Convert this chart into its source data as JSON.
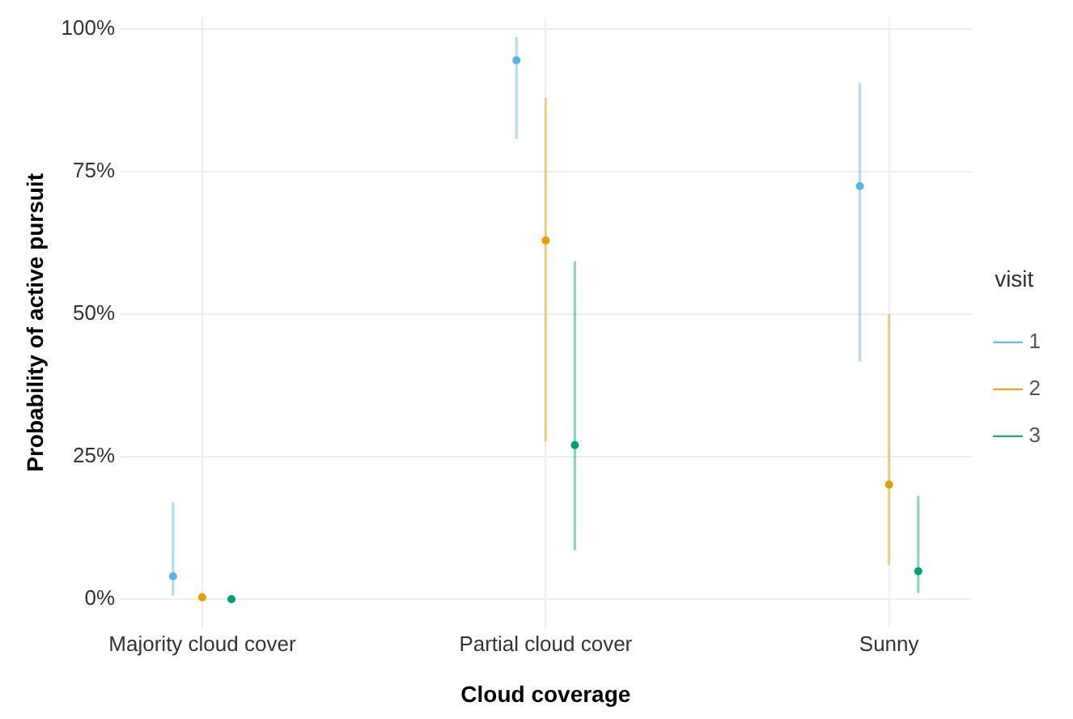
{
  "chart_data": {
    "type": "scatter",
    "xlabel": "Cloud coverage",
    "ylabel": "Probability of active pursuit",
    "legend_title": "visit",
    "categories": [
      "Majority cloud cover",
      "Partial cloud cover",
      "Sunny"
    ],
    "series": [
      {
        "name": "1",
        "color": "#56b4e9",
        "values": [
          4,
          94.5,
          72.4
        ],
        "errors": [
          [
            0.6,
            17
          ],
          [
            80.7,
            98.6
          ],
          [
            41.7,
            90.5
          ]
        ]
      },
      {
        "name": "2",
        "color": "#e69f00",
        "values": [
          0.3,
          62.9,
          20.1
        ],
        "errors": [
          [
            0,
            1.1
          ],
          [
            27.6,
            87.9
          ],
          [
            6,
            50
          ]
        ]
      },
      {
        "name": "3",
        "color": "#009e73",
        "values": [
          0,
          27,
          4.9
        ],
        "errors": [
          null,
          [
            8.6,
            59.2
          ],
          [
            1.1,
            18.1
          ]
        ]
      }
    ],
    "ylim": [
      -5,
      102
    ],
    "yticks": [
      {
        "value": 0,
        "label": "0%"
      },
      {
        "value": 25,
        "label": "25%"
      },
      {
        "value": 50,
        "label": "50%"
      },
      {
        "value": 75,
        "label": "75%"
      },
      {
        "value": 100,
        "label": "100%"
      }
    ],
    "grid": true,
    "legend": "right",
    "marker": "circle"
  }
}
